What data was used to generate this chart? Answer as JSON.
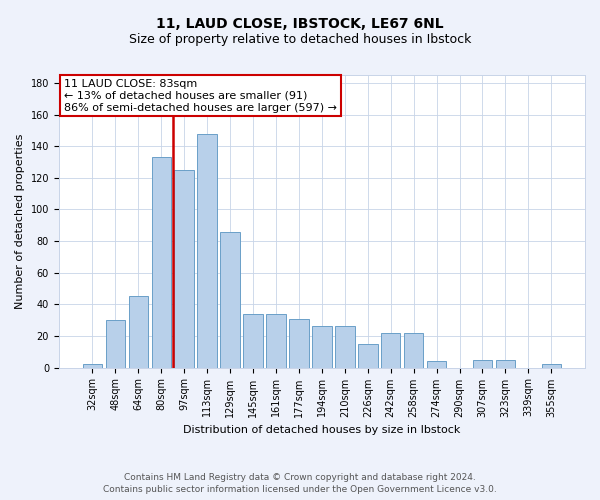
{
  "title_line1": "11, LAUD CLOSE, IBSTOCK, LE67 6NL",
  "title_line2": "Size of property relative to detached houses in Ibstock",
  "xlabel": "Distribution of detached houses by size in Ibstock",
  "ylabel": "Number of detached properties",
  "categories": [
    "32sqm",
    "48sqm",
    "64sqm",
    "80sqm",
    "97sqm",
    "113sqm",
    "129sqm",
    "145sqm",
    "161sqm",
    "177sqm",
    "194sqm",
    "210sqm",
    "226sqm",
    "242sqm",
    "258sqm",
    "274sqm",
    "290sqm",
    "307sqm",
    "323sqm",
    "339sqm",
    "355sqm"
  ],
  "values": [
    2,
    30,
    45,
    133,
    125,
    148,
    86,
    34,
    34,
    31,
    26,
    26,
    15,
    22,
    22,
    4,
    0,
    5,
    5,
    0,
    2
  ],
  "bar_color": "#b8d0ea",
  "bar_edge_color": "#6a9fc8",
  "vline_color": "#cc0000",
  "vline_x": 3.5,
  "annotation_text_line1": "11 LAUD CLOSE: 83sqm",
  "annotation_text_line2": "← 13% of detached houses are smaller (91)",
  "annotation_text_line3": "86% of semi-detached houses are larger (597) →",
  "ylim": [
    0,
    185
  ],
  "yticks": [
    0,
    20,
    40,
    60,
    80,
    100,
    120,
    140,
    160,
    180
  ],
  "footer_line1": "Contains HM Land Registry data © Crown copyright and database right 2024.",
  "footer_line2": "Contains public sector information licensed under the Open Government Licence v3.0.",
  "bg_color": "#eef2fb",
  "plot_bg_color": "#ffffff",
  "grid_color": "#c8d4e8",
  "title_fontsize": 10,
  "subtitle_fontsize": 9,
  "axis_label_fontsize": 8,
  "tick_fontsize": 7,
  "annotation_fontsize": 8,
  "footer_fontsize": 6.5
}
